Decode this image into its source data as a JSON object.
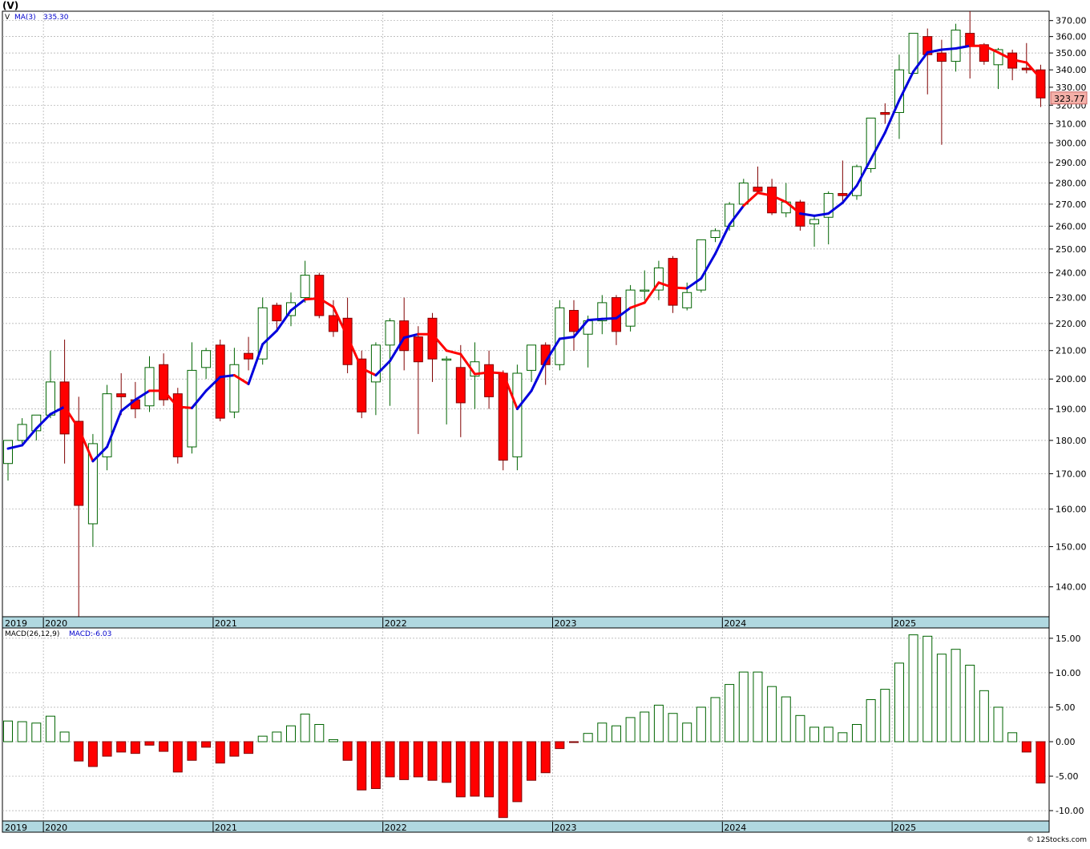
{
  "chart_data": [
    {
      "type": "candlestick",
      "ticker": "(V)",
      "symbol": "V",
      "indicator_label": "MA(3)",
      "indicator_value": "335.30",
      "last_price_label": "323.77",
      "y_ticks": [
        140,
        150,
        160,
        170,
        180,
        190,
        200,
        210,
        220,
        230,
        240,
        250,
        260,
        270,
        280,
        290,
        300,
        310,
        320,
        330,
        340,
        350,
        360,
        370
      ],
      "y_tick_labels": [
        "140.00",
        "150.00",
        "160.00",
        "170.00",
        "180.00",
        "190.00",
        "200.00",
        "210.00",
        "220.00",
        "230.00",
        "240.00",
        "250.00",
        "260.00",
        "270.00",
        "280.00",
        "290.00",
        "300.00",
        "310.00",
        "320.00",
        "330.00",
        "340.00",
        "350.00",
        "360.00",
        "370.00"
      ],
      "ylim": [
        133,
        376
      ],
      "y_scale": "log",
      "year_labels": [
        "2019",
        "2020",
        "2021",
        "2022",
        "2023",
        "2024",
        "2025"
      ],
      "colors": {
        "up": "#006400",
        "down_fill": "#ff0000",
        "down_edge": "#800000",
        "ma_rising": "#0000dd",
        "ma_falling": "#ff0000",
        "grid": "#aaaaaa",
        "axis_band": "#b0d8e0"
      },
      "candles": [
        {
          "o": 173,
          "h": 180,
          "l": 168,
          "c": 180
        },
        {
          "o": 180,
          "h": 187,
          "l": 179,
          "c": 185
        },
        {
          "o": 183,
          "h": 188,
          "l": 180,
          "c": 188
        },
        {
          "o": 188,
          "h": 210,
          "l": 187,
          "c": 199
        },
        {
          "o": 199,
          "h": 214,
          "l": 173,
          "c": 182
        },
        {
          "o": 186,
          "h": 194,
          "l": 133,
          "c": 161
        },
        {
          "o": 156,
          "h": 182,
          "l": 150,
          "c": 179
        },
        {
          "o": 175,
          "h": 198,
          "l": 171,
          "c": 195
        },
        {
          "o": 195,
          "h": 202,
          "l": 188,
          "c": 194
        },
        {
          "o": 193,
          "h": 199,
          "l": 187,
          "c": 190
        },
        {
          "o": 191,
          "h": 208,
          "l": 189,
          "c": 204
        },
        {
          "o": 205,
          "h": 209,
          "l": 191,
          "c": 193
        },
        {
          "o": 195,
          "h": 197,
          "l": 173,
          "c": 175
        },
        {
          "o": 178,
          "h": 213,
          "l": 176,
          "c": 203
        },
        {
          "o": 204,
          "h": 211,
          "l": 200,
          "c": 210
        },
        {
          "o": 212,
          "h": 214,
          "l": 186,
          "c": 187
        },
        {
          "o": 189,
          "h": 211,
          "l": 187,
          "c": 205
        },
        {
          "o": 209,
          "h": 215,
          "l": 203,
          "c": 207
        },
        {
          "o": 207,
          "h": 230,
          "l": 205,
          "c": 226
        },
        {
          "o": 227,
          "h": 228,
          "l": 218,
          "c": 221
        },
        {
          "o": 223,
          "h": 232,
          "l": 219,
          "c": 228
        },
        {
          "o": 230,
          "h": 245,
          "l": 228,
          "c": 239
        },
        {
          "o": 239,
          "h": 240,
          "l": 222,
          "c": 223
        },
        {
          "o": 223,
          "h": 229,
          "l": 215,
          "c": 217
        },
        {
          "o": 222,
          "h": 230,
          "l": 202,
          "c": 205
        },
        {
          "o": 207,
          "h": 210,
          "l": 187,
          "c": 189
        },
        {
          "o": 199,
          "h": 213,
          "l": 188,
          "c": 212
        },
        {
          "o": 212,
          "h": 222,
          "l": 191,
          "c": 221
        },
        {
          "o": 221,
          "h": 230,
          "l": 203,
          "c": 210
        },
        {
          "o": 215,
          "h": 219,
          "l": 182,
          "c": 206
        },
        {
          "o": 222,
          "h": 224,
          "l": 199,
          "c": 207
        },
        {
          "o": 207,
          "h": 208,
          "l": 185,
          "c": 207
        },
        {
          "o": 204,
          "h": 212,
          "l": 181,
          "c": 192
        },
        {
          "o": 201,
          "h": 213,
          "l": 190,
          "c": 206
        },
        {
          "o": 205,
          "h": 210,
          "l": 190,
          "c": 194
        },
        {
          "o": 202,
          "h": 203,
          "l": 171,
          "c": 174
        },
        {
          "o": 175,
          "h": 205,
          "l": 171,
          "c": 202
        },
        {
          "o": 203,
          "h": 212,
          "l": 199,
          "c": 212
        },
        {
          "o": 212,
          "h": 213,
          "l": 198,
          "c": 205
        },
        {
          "o": 205,
          "h": 229,
          "l": 203,
          "c": 226
        },
        {
          "o": 225,
          "h": 229,
          "l": 210,
          "c": 217
        },
        {
          "o": 216,
          "h": 223,
          "l": 204,
          "c": 221
        },
        {
          "o": 221,
          "h": 231,
          "l": 216,
          "c": 228
        },
        {
          "o": 230,
          "h": 231,
          "l": 212,
          "c": 217
        },
        {
          "o": 219,
          "h": 235,
          "l": 217,
          "c": 233
        },
        {
          "o": 233,
          "h": 241,
          "l": 229,
          "c": 233
        },
        {
          "o": 233,
          "h": 245,
          "l": 229,
          "c": 242
        },
        {
          "o": 246,
          "h": 247,
          "l": 224,
          "c": 227
        },
        {
          "o": 226,
          "h": 236,
          "l": 225,
          "c": 232
        },
        {
          "o": 233,
          "h": 254,
          "l": 232,
          "c": 254
        },
        {
          "o": 255,
          "h": 259,
          "l": 253,
          "c": 258
        },
        {
          "o": 260,
          "h": 271,
          "l": 258,
          "c": 270
        },
        {
          "o": 270,
          "h": 282,
          "l": 270,
          "c": 280
        },
        {
          "o": 278,
          "h": 288,
          "l": 275,
          "c": 276
        },
        {
          "o": 278,
          "h": 282,
          "l": 265,
          "c": 266
        },
        {
          "o": 266,
          "h": 280,
          "l": 264,
          "c": 271
        },
        {
          "o": 271,
          "h": 272,
          "l": 258,
          "c": 260
        },
        {
          "o": 261,
          "h": 265,
          "l": 251,
          "c": 263
        },
        {
          "o": 264,
          "h": 276,
          "l": 252,
          "c": 275
        },
        {
          "o": 275,
          "h": 291,
          "l": 271,
          "c": 274
        },
        {
          "o": 274,
          "h": 289,
          "l": 272,
          "c": 288
        },
        {
          "o": 287,
          "h": 313,
          "l": 285,
          "c": 313
        },
        {
          "o": 316,
          "h": 321,
          "l": 310,
          "c": 315
        },
        {
          "o": 316,
          "h": 349,
          "l": 302,
          "c": 340
        },
        {
          "o": 338,
          "h": 362,
          "l": 338,
          "c": 362
        },
        {
          "o": 360,
          "h": 365,
          "l": 326,
          "c": 349
        },
        {
          "o": 350,
          "h": 358,
          "l": 299,
          "c": 345
        },
        {
          "o": 345,
          "h": 368,
          "l": 339,
          "c": 364
        },
        {
          "o": 362,
          "h": 376,
          "l": 335,
          "c": 354
        },
        {
          "o": 355,
          "h": 356,
          "l": 343,
          "c": 345
        },
        {
          "o": 343,
          "h": 353,
          "l": 329,
          "c": 352
        },
        {
          "o": 350,
          "h": 352,
          "l": 334,
          "c": 341
        },
        {
          "o": 341,
          "h": 356,
          "l": 338,
          "c": 340
        },
        {
          "o": 340,
          "h": 343,
          "l": 319,
          "c": 324
        }
      ],
      "ma": [
        177.5,
        178.5,
        183.7,
        188.3,
        190.7,
        183.7,
        173.7,
        178.0,
        189.3,
        193.0,
        196.0,
        196.0,
        190.7,
        190.3,
        196.0,
        200.7,
        201.3,
        198.3,
        212.3,
        217.3,
        225.0,
        229.3,
        229.7,
        226.3,
        215.0,
        203.7,
        201.3,
        206.3,
        214.7,
        216.0,
        216.0,
        210.0,
        208.7,
        201.7,
        202.3,
        202.0,
        190.0,
        196.0,
        206.0,
        214.3,
        215.0,
        221.3,
        221.7,
        222.0,
        226.0,
        228.0,
        236.0,
        234.0,
        233.7,
        237.7,
        248.0,
        260.7,
        269.3,
        275.3,
        274.0,
        271.0,
        265.7,
        264.7,
        265.7,
        270.7,
        278.7,
        291.7,
        305.3,
        322.7,
        339.0,
        350.3,
        352.0,
        352.7,
        354.3,
        354.3,
        350.3,
        346.0,
        344.3,
        335.0
      ],
      "ma_direction": [
        "up",
        "up",
        "up",
        "up",
        "up",
        "down",
        "down",
        "up",
        "up",
        "up",
        "up",
        "down",
        "down",
        "down",
        "up",
        "up",
        "up",
        "down",
        "up",
        "up",
        "up",
        "up",
        "down",
        "down",
        "down",
        "down",
        "down",
        "up",
        "up",
        "up",
        "down",
        "down",
        "down",
        "down",
        "down",
        "down",
        "down",
        "up",
        "up",
        "up",
        "up",
        "up",
        "up",
        "up",
        "up",
        "down",
        "down",
        "down",
        "down",
        "up",
        "up",
        "up",
        "up",
        "down",
        "down",
        "down",
        "down",
        "up",
        "up",
        "up",
        "up",
        "up",
        "up",
        "up",
        "up",
        "up",
        "up",
        "up",
        "up",
        "down",
        "down",
        "down",
        "down",
        "down"
      ],
      "panel": "price"
    },
    {
      "type": "bar",
      "name": "MACD",
      "indicator_label": "MACD(26,12,9)",
      "indicator_value": "MACD:-6.03",
      "y_ticks": [
        -10,
        -5,
        0,
        5,
        10,
        15
      ],
      "y_tick_labels": [
        "-10.00",
        "-5.00",
        "0.00",
        "5.00",
        "10.00",
        "15.00"
      ],
      "ylim": [
        -11.5,
        16.5
      ],
      "year_labels": [
        "2019",
        "2020",
        "2021",
        "2022",
        "2023",
        "2024",
        "2025"
      ],
      "values": [
        3.0,
        2.9,
        2.7,
        3.7,
        1.4,
        -2.8,
        -3.6,
        -2.1,
        -1.5,
        -1.7,
        -0.5,
        -1.4,
        -4.4,
        -2.7,
        -0.8,
        -3.1,
        -2.1,
        -1.7,
        0.8,
        1.4,
        2.3,
        4.0,
        2.5,
        0.3,
        -2.7,
        -7.0,
        -6.8,
        -5.1,
        -5.5,
        -5.1,
        -5.6,
        -5.9,
        -8.0,
        -7.9,
        -8.0,
        -11.0,
        -8.7,
        -5.6,
        -4.5,
        -1.0,
        -0.1,
        1.2,
        2.7,
        2.3,
        3.5,
        4.3,
        5.3,
        4.1,
        2.7,
        5.0,
        6.4,
        8.3,
        10.1,
        10.1,
        8.0,
        6.5,
        3.8,
        2.1,
        2.1,
        1.3,
        2.5,
        6.1,
        7.6,
        11.4,
        15.5,
        15.3,
        12.7,
        13.4,
        11.1,
        7.4,
        5.0,
        1.3,
        -1.5,
        -6.0
      ],
      "panel": "macd"
    }
  ],
  "footer": {
    "credit": "© 12Stocks.com"
  }
}
